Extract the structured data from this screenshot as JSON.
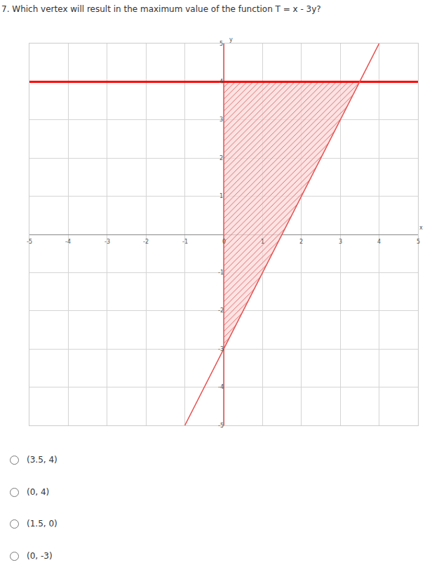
{
  "question": "7. Which vertex will result in the maximum value of the function T = x - 3y?",
  "chart_data": {
    "type": "line",
    "xlabel": "x",
    "ylabel": "y",
    "xlim": [
      -5,
      5
    ],
    "ylim": [
      -5,
      5
    ],
    "xticks": [
      -5,
      -4,
      -3,
      -2,
      -1,
      0,
      1,
      2,
      3,
      4,
      5
    ],
    "yticks": [
      -5,
      -4,
      -3,
      -2,
      -1,
      0,
      1,
      2,
      3,
      4,
      5
    ],
    "grid": true,
    "series": [
      {
        "type": "area",
        "color": "#e06060",
        "x": [
          0,
          3.5,
          0
        ],
        "values": [
          4,
          4,
          -3
        ]
      },
      {
        "type": "line",
        "color": "#ee5555",
        "x": [
          0,
          0
        ],
        "values": [
          -5,
          5
        ]
      },
      {
        "type": "line",
        "color": "#ff0000",
        "x": [
          -5,
          5
        ],
        "values": [
          4,
          4
        ]
      },
      {
        "type": "line",
        "color": "#e85050",
        "x": [
          -1,
          4
        ],
        "values": [
          -5,
          5
        ]
      }
    ]
  },
  "options": [
    "(3.5, 4)",
    "(0, 4)",
    "(1.5, 0)",
    "(0, -3)"
  ]
}
